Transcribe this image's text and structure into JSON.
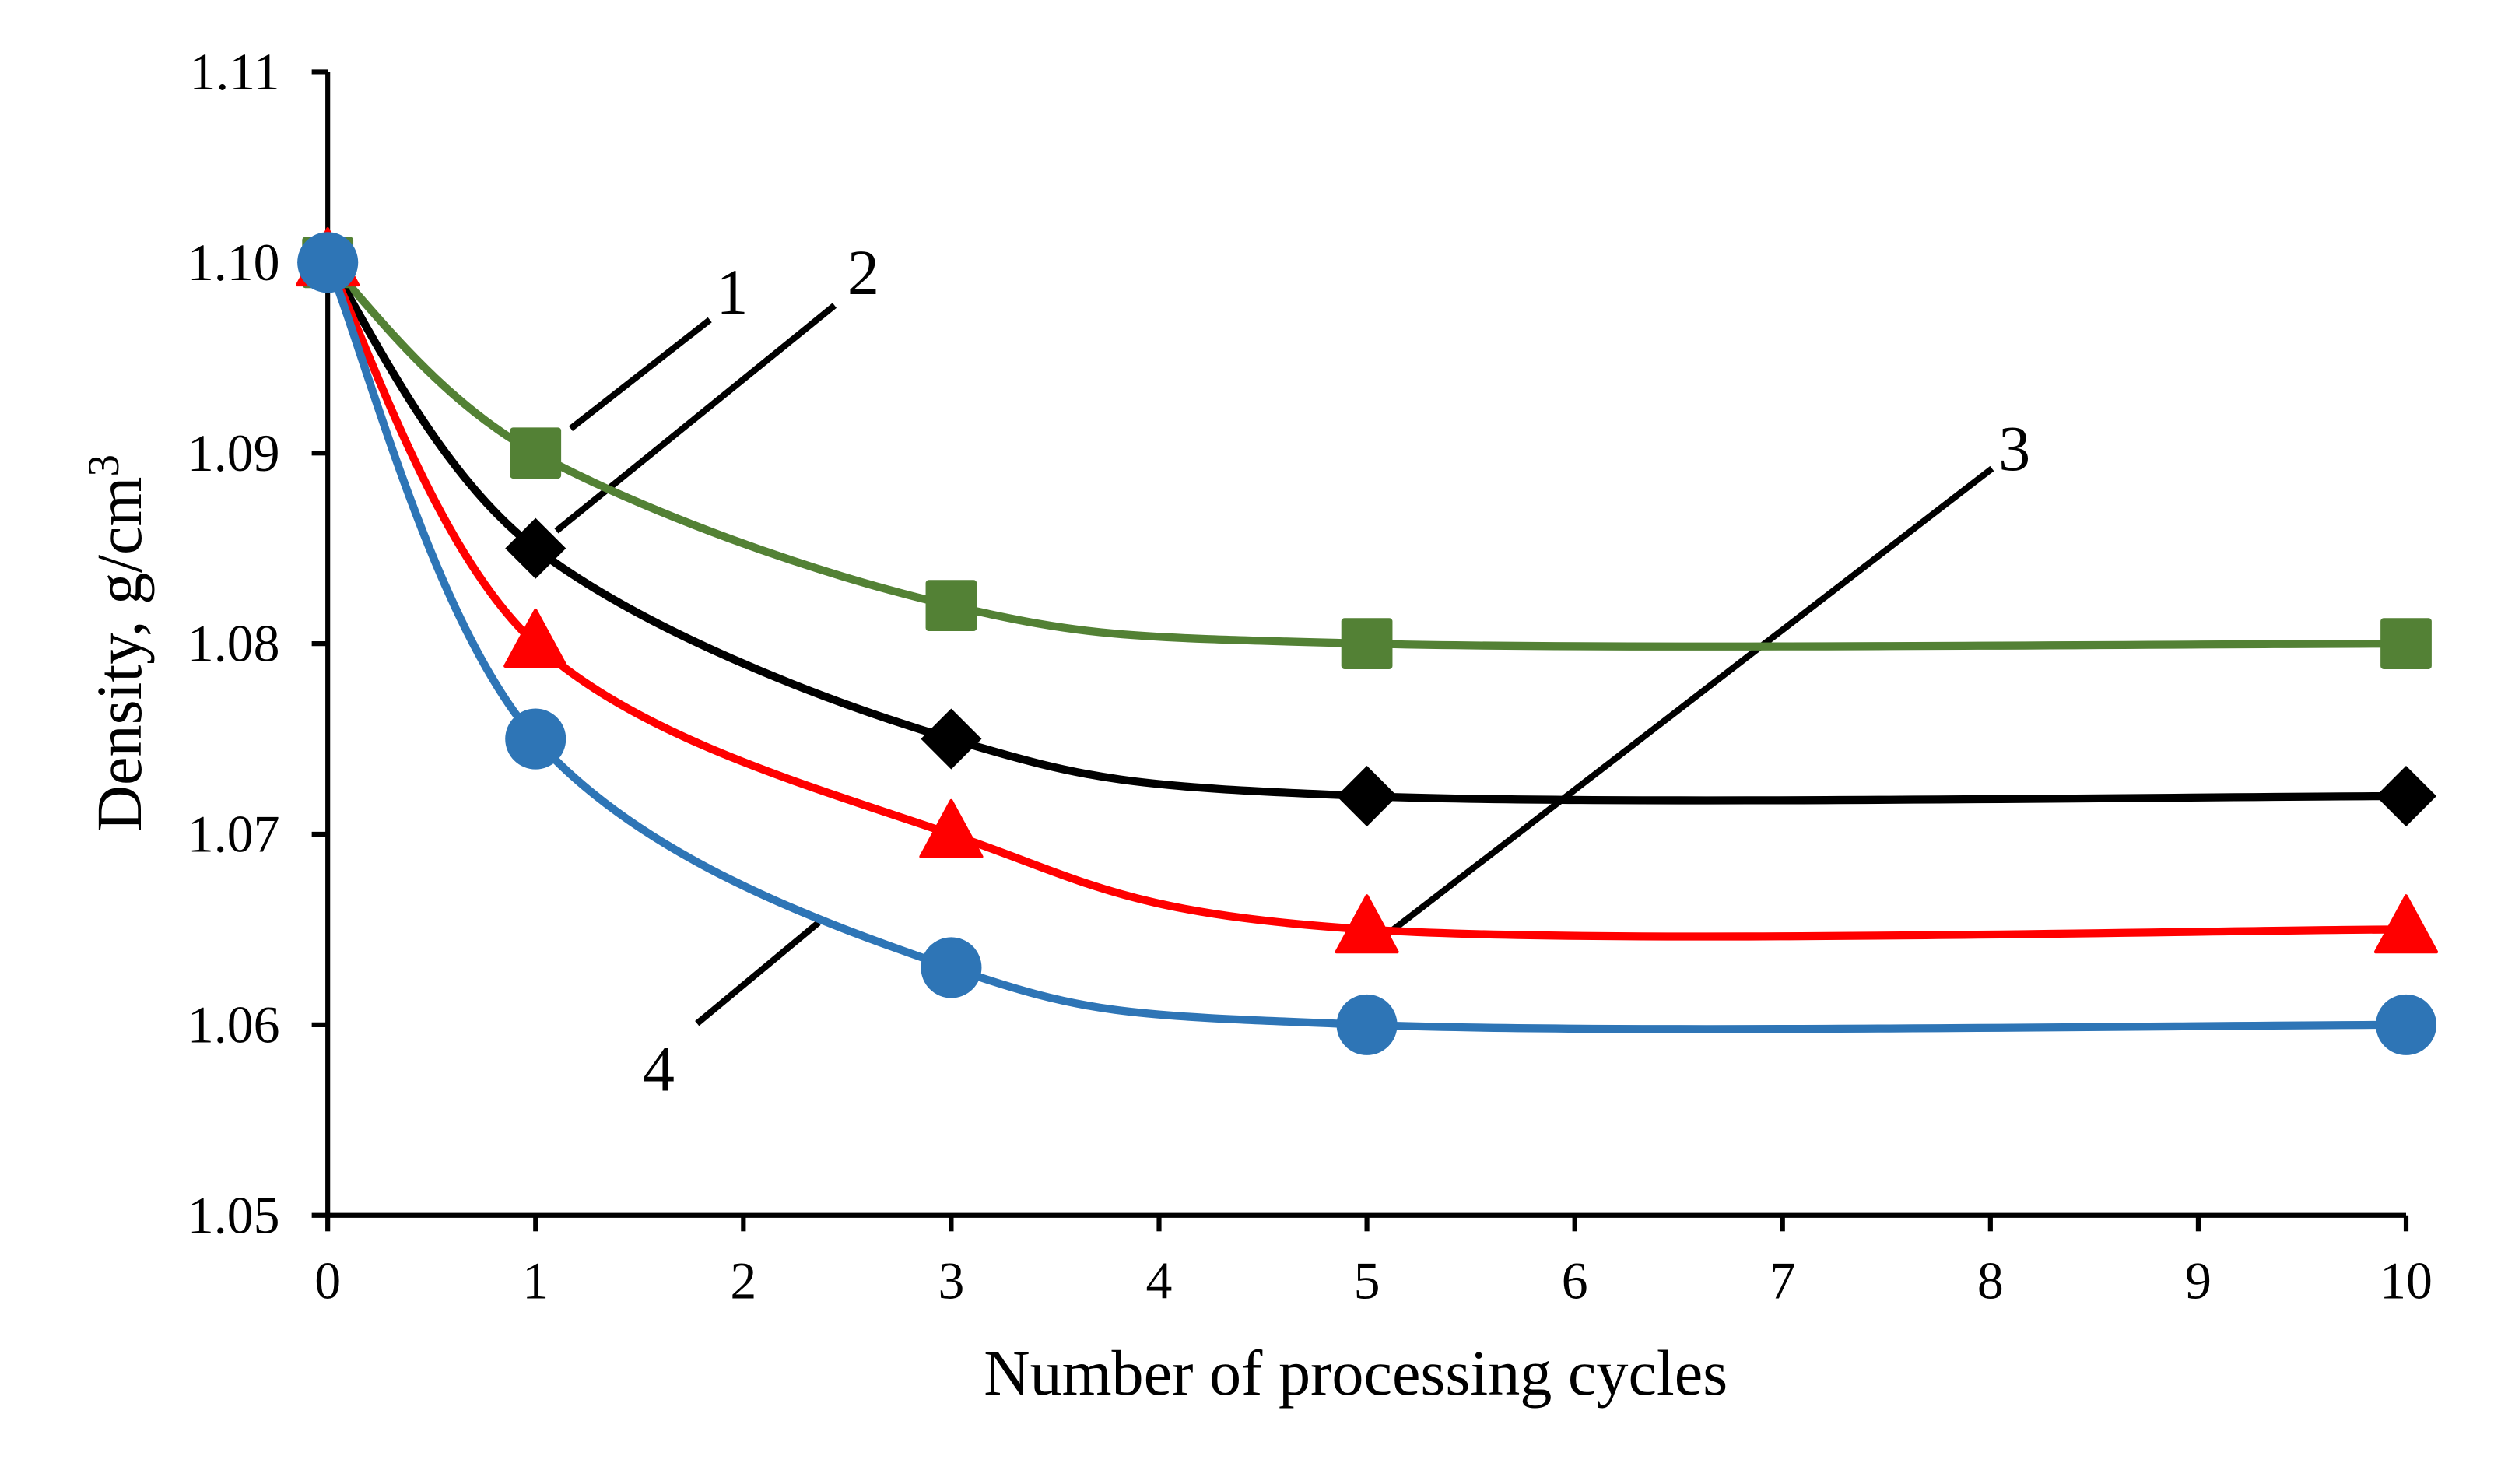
{
  "chart_data": {
    "type": "line",
    "title": "",
    "xlabel": "Number of processing cycles",
    "ylabel": "Density, g/cm",
    "ylabel_superscript": "3",
    "xlim": [
      0,
      10
    ],
    "ylim": [
      1.05,
      1.11
    ],
    "x_ticks": [
      "0",
      "1",
      "2",
      "3",
      "4",
      "5",
      "6",
      "7",
      "8",
      "9",
      "10"
    ],
    "y_ticks": [
      "1.05",
      "1.06",
      "1.07",
      "1.08",
      "1.09",
      "1.10",
      "1.11"
    ],
    "grid": false,
    "legend": "none (numbered callouts)",
    "x": [
      0,
      1,
      3,
      5,
      10
    ],
    "series": [
      {
        "name": "1",
        "color": "#538135",
        "marker": "square",
        "values": [
          1.1,
          1.09,
          1.082,
          1.08,
          1.08
        ]
      },
      {
        "name": "2",
        "color": "#000000",
        "marker": "diamond",
        "values": [
          1.1,
          1.085,
          1.075,
          1.072,
          1.072
        ]
      },
      {
        "name": "3",
        "color": "#ff0000",
        "marker": "triangle",
        "values": [
          1.1,
          1.08,
          1.07,
          1.065,
          1.065
        ]
      },
      {
        "name": "4",
        "color": "#2e75b6",
        "marker": "circle",
        "values": [
          1.1,
          1.075,
          1.063,
          1.06,
          1.06
        ]
      }
    ],
    "annotations": [
      {
        "label": "1",
        "points_to_series": "1",
        "at_x": 1
      },
      {
        "label": "2",
        "points_to_series": "2",
        "at_x": 1
      },
      {
        "label": "3",
        "points_to_series": "3",
        "at_x": 5
      },
      {
        "label": "4",
        "points_to_series": "4",
        "at_x": 2.4
      }
    ]
  }
}
